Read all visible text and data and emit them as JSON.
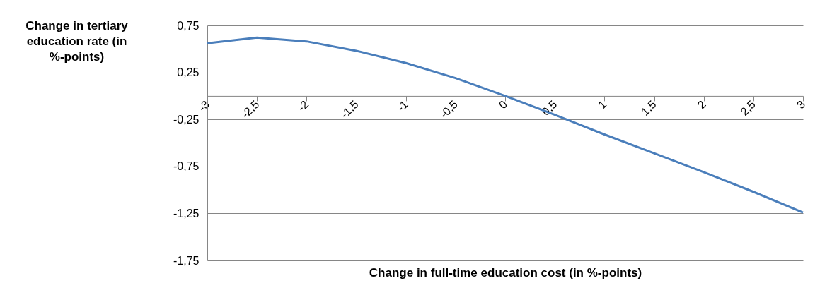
{
  "chart_data": {
    "type": "line",
    "xlabel": "Change in full-time education cost (in %-points)",
    "ylabel": "Change in tertiary education rate (in %-points)",
    "x": [
      -3,
      -2.5,
      -2,
      -1.5,
      -1,
      -0.5,
      0,
      0.5,
      1,
      1.5,
      2,
      2.5,
      3
    ],
    "series": [
      {
        "color": "#4a7ebb",
        "values": [
          0.56,
          0.62,
          0.58,
          0.48,
          0.35,
          0.19,
          0.0,
          -0.2,
          -0.41,
          -0.61,
          -0.81,
          -1.02,
          -1.24
        ]
      }
    ],
    "xlim": [
      -3,
      3
    ],
    "xticks": [
      {
        "value": -3,
        "label": "-3"
      },
      {
        "value": -2.5,
        "label": "-2,5"
      },
      {
        "value": -2,
        "label": "-2"
      },
      {
        "value": -1.5,
        "label": "-1,5"
      },
      {
        "value": -1,
        "label": "-1"
      },
      {
        "value": -0.5,
        "label": "-0,5"
      },
      {
        "value": 0,
        "label": "0"
      },
      {
        "value": 0.5,
        "label": "0,5"
      },
      {
        "value": 1,
        "label": "1"
      },
      {
        "value": 1.5,
        "label": "1,5"
      },
      {
        "value": 2,
        "label": "2"
      },
      {
        "value": 2.5,
        "label": "2,5"
      },
      {
        "value": 3,
        "label": "3"
      }
    ],
    "ylim": [
      -1.75,
      0.75
    ],
    "yticks": [
      {
        "value": -1.75,
        "label": "-1,75"
      },
      {
        "value": -1.25,
        "label": "-1,25"
      },
      {
        "value": -0.75,
        "label": "-0,75"
      },
      {
        "value": -0.25,
        "label": "-0,25"
      },
      {
        "value": 0.25,
        "label": "0,25"
      },
      {
        "value": 0.75,
        "label": "0,75"
      }
    ],
    "grid": "y",
    "marker": "none",
    "line_style": "solid"
  }
}
